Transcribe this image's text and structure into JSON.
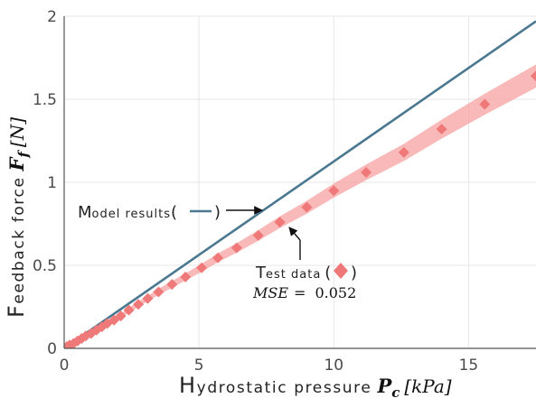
{
  "chart_data": {
    "type": "line",
    "xlim": [
      0,
      17.5
    ],
    "ylim": [
      0,
      2
    ],
    "grid": true,
    "xticks": [
      0,
      5,
      10,
      15
    ],
    "yticks": [
      0,
      0.5,
      1,
      1.5,
      2
    ],
    "xlabel": {
      "cap": "H",
      "text": "ydrostatic pressure",
      "symbol": "P",
      "subscript": "c",
      "unit": "[kPa]"
    },
    "ylabel": {
      "cap": "F",
      "text": "eedback force",
      "symbol": "F",
      "subscript": "f",
      "unit": "[N]"
    },
    "series": [
      {
        "kind": "line",
        "color": "#4a7890",
        "x": [
          0,
          17.5
        ],
        "y": [
          0,
          1.97
        ]
      },
      {
        "kind": "markers",
        "color": "#ef7878",
        "band_color": "#f8a8a8",
        "x": [
          0.1,
          0.2,
          0.35,
          0.5,
          0.65,
          0.8,
          1.0,
          1.2,
          1.4,
          1.6,
          1.85,
          2.1,
          2.4,
          2.75,
          3.1,
          3.5,
          4.0,
          4.5,
          5.1,
          5.7,
          6.4,
          7.2,
          8.0,
          9.0,
          10.0,
          11.2,
          12.6,
          14.0,
          15.6,
          17.5
        ],
        "y": [
          0.01,
          0.02,
          0.03,
          0.045,
          0.06,
          0.075,
          0.09,
          0.11,
          0.13,
          0.15,
          0.17,
          0.195,
          0.23,
          0.265,
          0.3,
          0.34,
          0.385,
          0.43,
          0.485,
          0.545,
          0.605,
          0.68,
          0.76,
          0.85,
          0.95,
          1.06,
          1.18,
          1.32,
          1.47,
          1.64
        ],
        "band_halfwidth": 0.065
      }
    ],
    "annotations": {
      "model": {
        "cap": "M",
        "text": "odel results",
        "open": "(",
        "close": ")"
      },
      "test": {
        "cap": "T",
        "text": "est data",
        "open": "(",
        "close": ")"
      },
      "mse": {
        "label": "MSE",
        "eq": "=",
        "value": "0.052"
      }
    }
  }
}
